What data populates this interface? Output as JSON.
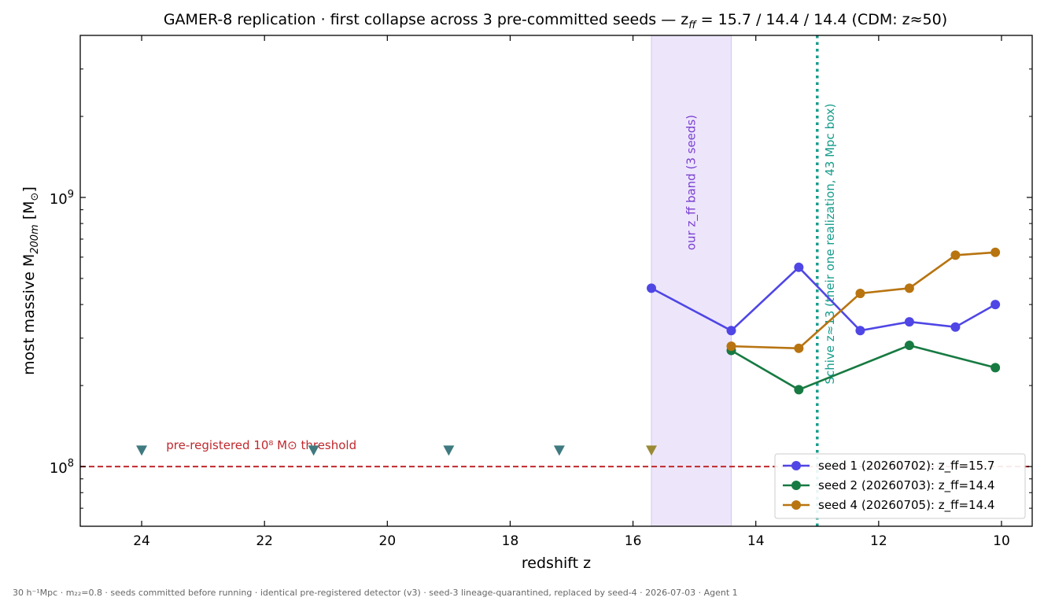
{
  "chart_data": {
    "type": "line",
    "title_prefix": "GAMER-8 replication · first collapse across 3 pre-committed seeds — z",
    "title_sub": "ff",
    "title_suffix": " = 15.7 / 14.4 / 14.4 (CDM: z≈50)",
    "xlabel": "redshift z",
    "ylabel_prefix": "most massive M",
    "ylabel_sub": "200m",
    "ylabel_suffix": " [M",
    "ylabel_sun": "⊙",
    "ylabel_close": "]",
    "xlim": [
      25,
      9.5
    ],
    "ylim": [
      60000000,
      4000000000
    ],
    "yscale": "log",
    "x_ticks": [
      24,
      22,
      20,
      18,
      16,
      14,
      12,
      10
    ],
    "x_tick_labels": [
      "24",
      "22",
      "20",
      "18",
      "16",
      "14",
      "12",
      "10"
    ],
    "y_major_ticks": [
      100000000,
      1000000000
    ],
    "y_major_tick_labels": [
      {
        "base": "10",
        "exp": "8"
      },
      {
        "base": "10",
        "exp": "9"
      }
    ],
    "y_minor_ticks": [
      60000000,
      70000000,
      80000000,
      90000000,
      200000000,
      300000000,
      400000000,
      500000000,
      600000000,
      700000000,
      800000000,
      900000000,
      2000000000,
      3000000000,
      4000000000
    ],
    "threshold": {
      "value": 100000000,
      "label": "pre-registered 10⁸ M⊙ threshold",
      "color": "#c0282d"
    },
    "band": {
      "x_range": [
        15.7,
        14.4
      ],
      "label": "our z_ff band (3 seeds)",
      "fill": "#ede6fb",
      "edge": "#d4c6f3",
      "text_color": "#7a3fd1"
    },
    "reference_line": {
      "x": 13.0,
      "label": "Schive z≈13 (their one realization, 43 Mpc box)",
      "color": "#179c8c"
    },
    "non_detections": {
      "x": [
        24,
        21.2,
        19.0,
        17.2
      ],
      "y": 115000000,
      "color": "#3e7a80"
    },
    "non_detection_highlight": {
      "x": 15.7,
      "y": 115000000,
      "color": "#9a8a36"
    },
    "series": [
      {
        "name": "seed 1 (20260702): z_ff=15.7",
        "color": "#4f46e5",
        "x": [
          15.7,
          14.4,
          13.3,
          12.3,
          11.5,
          10.75,
          10.1
        ],
        "values": [
          460000000,
          320000000,
          550000000,
          320000000,
          345000000,
          330000000,
          400000000
        ]
      },
      {
        "name": "seed 2 (20260703): z_ff=14.4",
        "color": "#177a42",
        "x": [
          14.4,
          13.3,
          11.5,
          10.1
        ],
        "values": [
          270000000,
          193000000,
          282000000,
          233000000
        ]
      },
      {
        "name": "seed 4 (20260705): z_ff=14.4",
        "color": "#b87410",
        "x": [
          14.4,
          13.3,
          12.3,
          11.5,
          10.75,
          10.1
        ],
        "values": [
          280000000,
          275000000,
          440000000,
          460000000,
          610000000,
          625000000
        ]
      }
    ],
    "legend_position": "lower-right",
    "grid": false
  },
  "footer": "30 h⁻¹Mpc · m₂₂=0.8 · seeds committed before running · identical pre-registered detector (v3) · seed-3 lineage-quarantined, replaced by seed-4 · 2026-07-03 · Agent 1"
}
